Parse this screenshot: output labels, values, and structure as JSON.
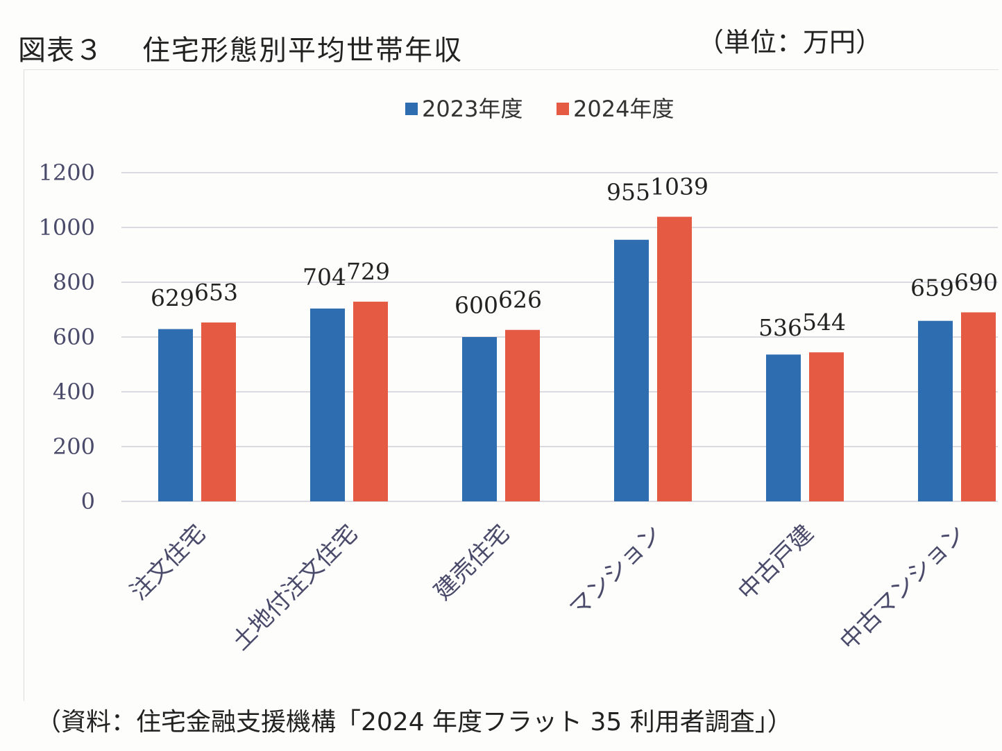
{
  "header": {
    "figure_label": "図表３",
    "title": "住宅形態別平均世帯年収",
    "unit": "（単位：万円）"
  },
  "footer": {
    "source": "（資料：住宅金融支援機構「2024 年度フラット 35 利用者調査」）"
  },
  "colors": {
    "series_2023": "#2e6db0",
    "series_2024": "#e55a42",
    "grid": "#cfcfd6",
    "axis_text": "#4a4a6a"
  },
  "chart_data": {
    "type": "bar",
    "categories": [
      "注文住宅",
      "土地付注文住宅",
      "建売住宅",
      "マンション",
      "中古戸建",
      "中古マンション"
    ],
    "series": [
      {
        "name": "2023年度",
        "values": [
          629,
          704,
          600,
          955,
          536,
          659
        ]
      },
      {
        "name": "2024年度",
        "values": [
          653,
          729,
          626,
          1039,
          544,
          690
        ]
      }
    ],
    "yticks": [
      "0",
      "200",
      "400",
      "600",
      "800",
      "1000",
      "1200"
    ],
    "ylim": [
      0,
      1200
    ],
    "grid": true,
    "legend_position": "top-center",
    "data_labels": true
  }
}
